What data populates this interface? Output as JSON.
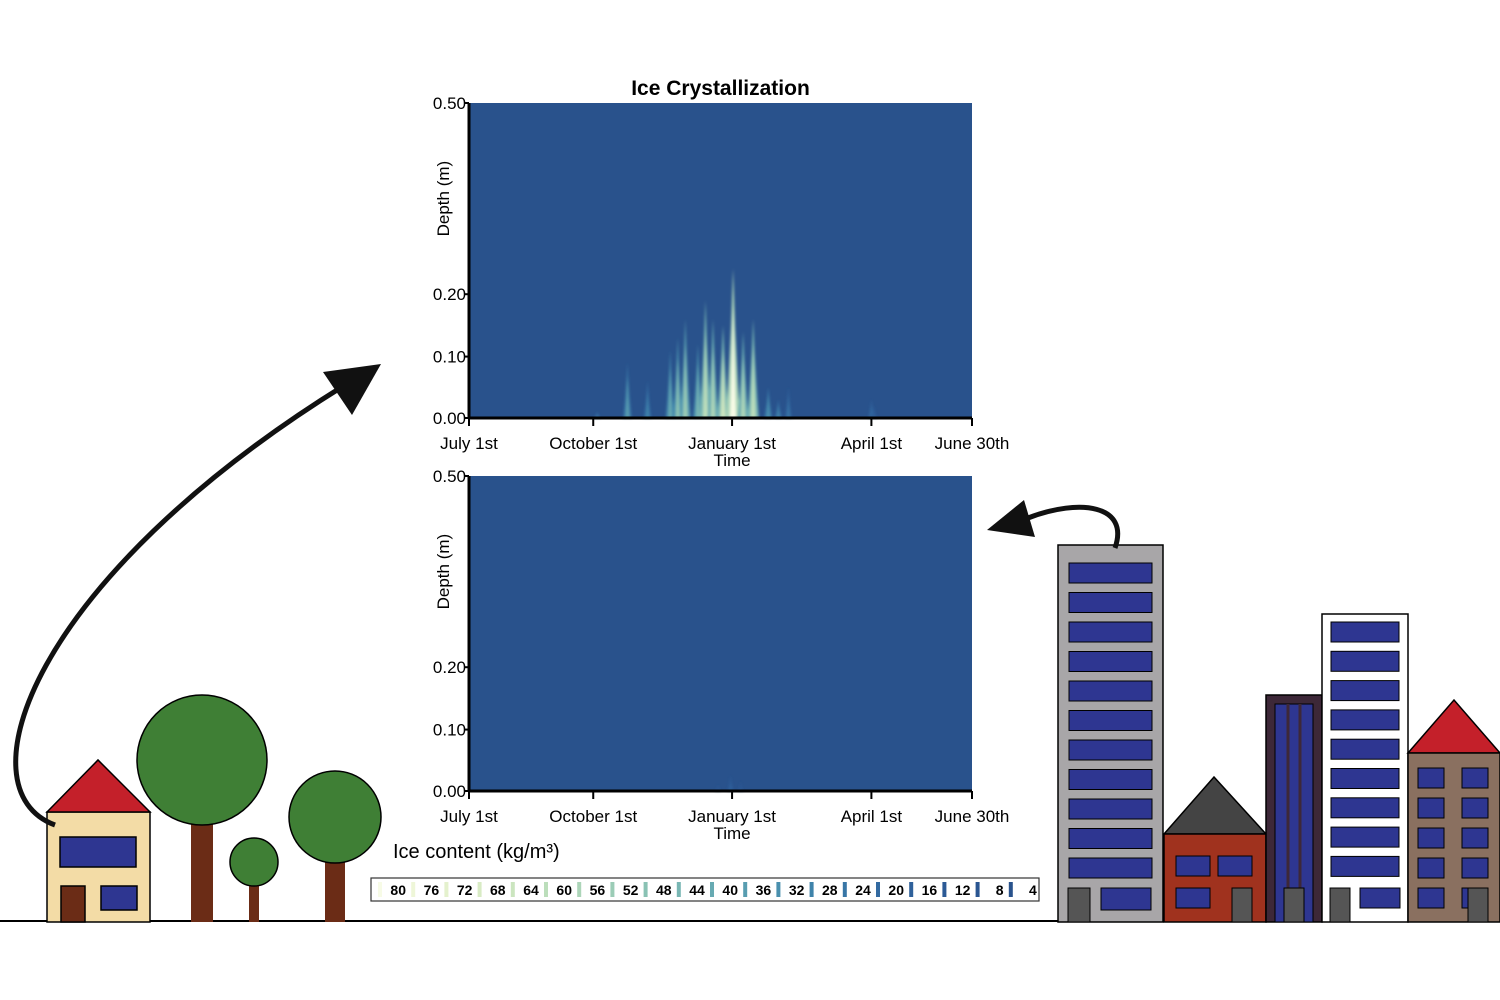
{
  "chart_data": [
    {
      "type": "heatmap",
      "title": "Ice Crystallization",
      "xlabel": "Time",
      "ylabel": "Depth (m)",
      "x_ticks": [
        "July 1st",
        "October 1st",
        "January 1st",
        "April 1st",
        "June 30th"
      ],
      "y_ticks": [
        "0.00",
        "0.10",
        "0.20",
        "0.50"
      ],
      "ylim": [
        0,
        0.5
      ],
      "background_color": "#29528c",
      "peaks": [
        {
          "time_frac": 0.255,
          "depth": 0.01,
          "intensity": 24
        },
        {
          "time_frac": 0.315,
          "depth": 0.09,
          "intensity": 36
        },
        {
          "time_frac": 0.355,
          "depth": 0.06,
          "intensity": 28
        },
        {
          "time_frac": 0.4,
          "depth": 0.11,
          "intensity": 40
        },
        {
          "time_frac": 0.415,
          "depth": 0.13,
          "intensity": 48
        },
        {
          "time_frac": 0.43,
          "depth": 0.16,
          "intensity": 52
        },
        {
          "time_frac": 0.455,
          "depth": 0.12,
          "intensity": 44
        },
        {
          "time_frac": 0.47,
          "depth": 0.19,
          "intensity": 60
        },
        {
          "time_frac": 0.485,
          "depth": 0.16,
          "intensity": 56
        },
        {
          "time_frac": 0.505,
          "depth": 0.15,
          "intensity": 64
        },
        {
          "time_frac": 0.525,
          "depth": 0.24,
          "intensity": 80
        },
        {
          "time_frac": 0.545,
          "depth": 0.14,
          "intensity": 56
        },
        {
          "time_frac": 0.565,
          "depth": 0.16,
          "intensity": 60
        },
        {
          "time_frac": 0.595,
          "depth": 0.05,
          "intensity": 32
        },
        {
          "time_frac": 0.615,
          "depth": 0.03,
          "intensity": 28
        },
        {
          "time_frac": 0.635,
          "depth": 0.05,
          "intensity": 24
        },
        {
          "time_frac": 0.8,
          "depth": 0.03,
          "intensity": 20
        },
        {
          "time_frac": 0.805,
          "depth": 0.02,
          "intensity": 16
        }
      ]
    },
    {
      "type": "heatmap",
      "title": "",
      "xlabel": "Time",
      "ylabel": "Depth (m)",
      "x_ticks": [
        "July 1st",
        "October 1st",
        "January 1st",
        "April 1st",
        "June 30th"
      ],
      "y_ticks": [
        "0.00",
        "0.10",
        "0.20",
        "0.50"
      ],
      "ylim": [
        0,
        0.5
      ],
      "background_color": "#29528c",
      "peaks": [
        {
          "time_frac": 0.495,
          "depth": 0.01,
          "intensity": 12
        },
        {
          "time_frac": 0.52,
          "depth": 0.025,
          "intensity": 16
        },
        {
          "time_frac": 0.54,
          "depth": 0.015,
          "intensity": 12
        }
      ]
    }
  ],
  "legend": {
    "title": "Ice content (kg/m³)",
    "values": [
      "80",
      "76",
      "72",
      "68",
      "64",
      "60",
      "56",
      "52",
      "48",
      "44",
      "40",
      "36",
      "32",
      "28",
      "24",
      "20",
      "16",
      "12",
      "8",
      "4"
    ],
    "colors": [
      "#f7fbe6",
      "#eef6d8",
      "#e4f1cd",
      "#d8ebc4",
      "#cbe5bf",
      "#bcdebb",
      "#acd5b8",
      "#9bccb6",
      "#8ac2b4",
      "#78b6b3",
      "#67aab2",
      "#589db0",
      "#4a90ae",
      "#3f83aa",
      "#3876a6",
      "#336aa1",
      "#2f619b",
      "#2c5a96",
      "#2a5591",
      "#29528c"
    ]
  },
  "colors": {
    "heatmap_background": "#29528c",
    "tree_foliage": "#3f7f35",
    "tree_trunk": "#6b2c16",
    "roof_red": "#c4202a",
    "house_wall": "#f3dca6",
    "window_blue": "#2e3691",
    "tower_gray": "#a8a6a8",
    "building_red": "#a0321e",
    "building_purple": "#3d2838",
    "building_brown": "#8a7060",
    "roof_dark": "#444444"
  }
}
